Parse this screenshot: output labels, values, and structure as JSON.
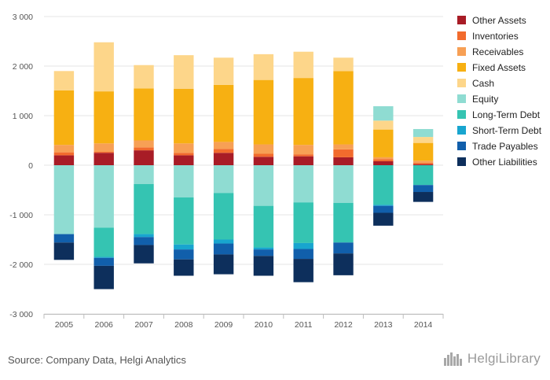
{
  "chart_data": {
    "type": "bar",
    "stacked": true,
    "categories": [
      "2005",
      "2006",
      "2007",
      "2008",
      "2009",
      "2010",
      "2011",
      "2012",
      "2013",
      "2014"
    ],
    "ylim": [
      -3000,
      3000
    ],
    "yticks": [
      3000,
      2000,
      1000,
      0,
      -1000,
      -2000,
      -3000
    ],
    "ytick_labels": [
      "3 000",
      "2 000",
      "1 000",
      "0",
      "-1 000",
      "-2 000",
      "-3 000"
    ],
    "grid": true,
    "legend_position": "right",
    "series": [
      {
        "name": "Other Assets",
        "color": "#a81c26",
        "values": [
          200,
          250,
          300,
          200,
          250,
          170,
          180,
          160,
          80,
          20
        ]
      },
      {
        "name": "Inventories",
        "color": "#f26b2d",
        "values": [
          60,
          20,
          60,
          50,
          80,
          60,
          40,
          160,
          40,
          30
        ]
      },
      {
        "name": "Receivables",
        "color": "#f7a055",
        "values": [
          150,
          170,
          140,
          190,
          140,
          190,
          190,
          100,
          40,
          40
        ]
      },
      {
        "name": "Fixed Assets",
        "color": "#f7b012",
        "values": [
          1100,
          1050,
          1050,
          1100,
          1150,
          1300,
          1350,
          1480,
          560,
          360
        ]
      },
      {
        "name": "Cash",
        "color": "#fdd68a",
        "values": [
          390,
          990,
          470,
          680,
          550,
          520,
          530,
          270,
          180,
          120
        ]
      },
      {
        "name": "Equity",
        "color": "#8fdcd2",
        "values": [
          -1390,
          -1260,
          -380,
          -650,
          -560,
          -820,
          -750,
          -760,
          290,
          160
        ]
      },
      {
        "name": "Long-Term Debt",
        "color": "#35c4b2",
        "values": [
          0,
          -590,
          -1010,
          -950,
          -940,
          -840,
          -820,
          -800,
          -800,
          -400
        ]
      },
      {
        "name": "Short-Term Debt",
        "color": "#18a5cf",
        "values": [
          0,
          -20,
          -60,
          -100,
          -80,
          -40,
          -120,
          0,
          -20,
          0
        ]
      },
      {
        "name": "Trade Payables",
        "color": "#115fab",
        "values": [
          -170,
          -160,
          -160,
          -200,
          -220,
          -130,
          -200,
          -220,
          -140,
          -140
        ]
      },
      {
        "name": "Other Liabilities",
        "color": "#0d2f5c",
        "values": [
          -350,
          -470,
          -370,
          -330,
          -400,
          -400,
          -470,
          -440,
          -260,
          -200
        ]
      }
    ]
  },
  "source": "Source: Company Data, Helgi Analytics",
  "logo": {
    "text": "HelgiLibrary",
    "icon": "city-skyline-icon"
  }
}
